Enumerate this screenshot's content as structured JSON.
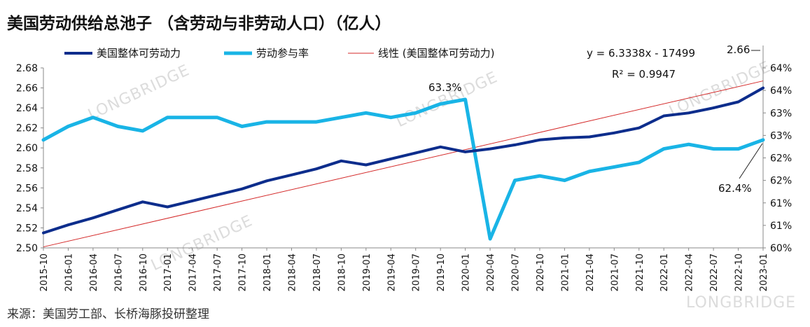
{
  "title": "美国劳动供给总池子 （含劳动与非劳动人口）（亿人）",
  "source": "来源：美国劳工部、长桥海豚投研整理",
  "watermark": "LONGBRIDGE",
  "colors": {
    "series1": "#0d2d8c",
    "series2": "#19b4e6",
    "trend": "#d42a2a"
  },
  "chart_data": {
    "type": "line",
    "x": [
      "2015-10",
      "2016-01",
      "2016-04",
      "2016-07",
      "2016-10",
      "2017-01",
      "2017-04",
      "2017-07",
      "2017-10",
      "2018-01",
      "2018-04",
      "2018-07",
      "2018-10",
      "2019-01",
      "2019-04",
      "2019-07",
      "2019-10",
      "2020-01",
      "2020-04",
      "2020-07",
      "2020-10",
      "2021-01",
      "2021-04",
      "2021-07",
      "2021-10",
      "2022-01",
      "2022-04",
      "2022-07",
      "2022-10",
      "2023-01"
    ],
    "series": [
      {
        "name": "美国整体可劳动力",
        "axis": "left",
        "values": [
          2.515,
          2.523,
          2.53,
          2.538,
          2.546,
          2.541,
          2.547,
          2.553,
          2.559,
          2.567,
          2.573,
          2.579,
          2.587,
          2.583,
          2.589,
          2.595,
          2.601,
          2.596,
          2.599,
          2.603,
          2.608,
          2.61,
          2.611,
          2.615,
          2.62,
          2.632,
          2.635,
          2.64,
          2.646,
          2.66
        ]
      },
      {
        "name": "劳动参与率",
        "axis": "right",
        "values": [
          62.4,
          62.7,
          62.9,
          62.7,
          62.6,
          62.9,
          62.9,
          62.9,
          62.7,
          62.8,
          62.8,
          62.8,
          62.9,
          63.0,
          62.9,
          63.0,
          63.2,
          63.3,
          60.2,
          61.5,
          61.6,
          61.5,
          61.7,
          61.8,
          61.9,
          62.2,
          62.3,
          62.2,
          62.2,
          62.4
        ]
      },
      {
        "name": "线性 (美国整体可劳动力)",
        "axis": "left",
        "type": "trendline",
        "start": [
          "2015-10",
          2.501
        ],
        "end": [
          "2023-01",
          2.667
        ]
      }
    ],
    "y_left": {
      "ylim": [
        2.5,
        2.68
      ],
      "ticks": [
        "2.50",
        "2.52",
        "2.54",
        "2.56",
        "2.58",
        "2.60",
        "2.62",
        "2.64",
        "2.66",
        "2.68"
      ]
    },
    "y_right": {
      "ylim": [
        60,
        64
      ],
      "ticks": [
        "60%",
        "61%",
        "61%",
        "62%",
        "62%",
        "63%",
        "63%",
        "64%",
        "64%"
      ]
    },
    "x_ticks": [
      "2015-10",
      "2016-01",
      "2016-04",
      "2016-07",
      "2016-10",
      "2017-01",
      "2017-04",
      "2017-07",
      "2017-10",
      "2018-01",
      "2018-04",
      "2018-07",
      "2018-10",
      "2019-01",
      "2019-04",
      "2019-07",
      "2019-10",
      "2020-01",
      "2020-04",
      "2020-07",
      "2020-10",
      "2021-01",
      "2021-04",
      "2021-07",
      "2021-10",
      "2022-01",
      "2022-04",
      "2022-07",
      "2022-10",
      "2023-01"
    ],
    "annotations": {
      "equation": "y = 6.3338x - 17499",
      "r2": "R² = 0.9947",
      "peak": "63.3%",
      "end_left": "2.66",
      "end_right": "62.4%"
    },
    "legend_position": "top",
    "grid": false
  }
}
